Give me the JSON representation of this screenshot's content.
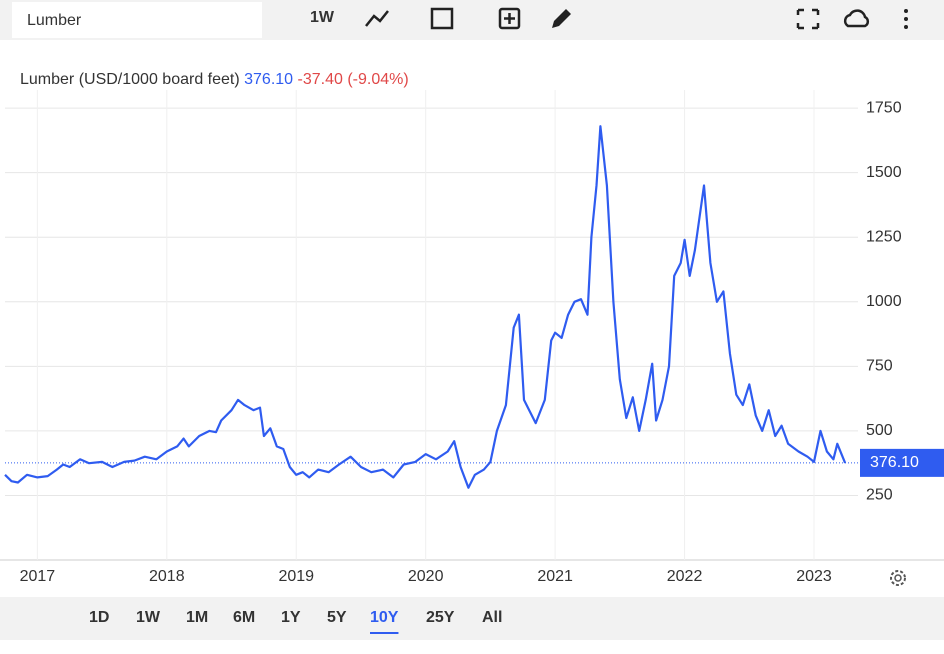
{
  "toolbar": {
    "search": "Lumber",
    "interval": "1W"
  },
  "ranges": [
    "1D",
    "1W",
    "1M",
    "6M",
    "1Y",
    "5Y",
    "10Y",
    "25Y",
    "All"
  ],
  "active_range": 6,
  "chart_data": {
    "type": "line",
    "title": "Lumber (USD/1000 board feet)",
    "last": {
      "value": 376.1,
      "label": "376.10"
    },
    "change": "-37.40 (-9.04%)",
    "x": [
      2016.75,
      2016.8,
      2016.85,
      2016.92,
      2017.0,
      2017.08,
      2017.15,
      2017.2,
      2017.25,
      2017.33,
      2017.4,
      2017.5,
      2017.58,
      2017.67,
      2017.75,
      2017.83,
      2017.92,
      2018.0,
      2018.08,
      2018.13,
      2018.17,
      2018.25,
      2018.33,
      2018.38,
      2018.42,
      2018.5,
      2018.55,
      2018.6,
      2018.67,
      2018.72,
      2018.75,
      2018.8,
      2018.85,
      2018.9,
      2018.95,
      2019.0,
      2019.05,
      2019.1,
      2019.17,
      2019.25,
      2019.33,
      2019.42,
      2019.5,
      2019.58,
      2019.67,
      2019.75,
      2019.83,
      2019.92,
      2020.0,
      2020.08,
      2020.17,
      2020.22,
      2020.27,
      2020.33,
      2020.38,
      2020.45,
      2020.5,
      2020.55,
      2020.62,
      2020.68,
      2020.72,
      2020.76,
      2020.8,
      2020.85,
      2020.92,
      2020.97,
      2021.0,
      2021.05,
      2021.1,
      2021.15,
      2021.2,
      2021.25,
      2021.28,
      2021.32,
      2021.35,
      2021.4,
      2021.45,
      2021.5,
      2021.55,
      2021.6,
      2021.65,
      2021.7,
      2021.75,
      2021.78,
      2021.83,
      2021.88,
      2021.92,
      2021.97,
      2022.0,
      2022.04,
      2022.08,
      2022.15,
      2022.2,
      2022.25,
      2022.3,
      2022.35,
      2022.4,
      2022.45,
      2022.5,
      2022.55,
      2022.6,
      2022.65,
      2022.7,
      2022.75,
      2022.8,
      2022.88,
      2022.95,
      2023.0,
      2023.05,
      2023.1,
      2023.15,
      2023.18,
      2023.24
    ],
    "series": [
      {
        "name": "Lumber",
        "color": "#2f5cf0",
        "values": [
          330,
          305,
          300,
          330,
          320,
          325,
          350,
          370,
          360,
          390,
          375,
          380,
          360,
          380,
          385,
          400,
          390,
          420,
          440,
          470,
          440,
          480,
          500,
          495,
          540,
          580,
          620,
          600,
          580,
          590,
          480,
          510,
          440,
          430,
          360,
          330,
          340,
          320,
          350,
          340,
          370,
          400,
          360,
          340,
          350,
          320,
          370,
          380,
          410,
          390,
          420,
          460,
          360,
          280,
          330,
          350,
          380,
          500,
          600,
          900,
          950,
          620,
          580,
          530,
          620,
          850,
          880,
          860,
          950,
          1000,
          1010,
          950,
          1250,
          1450,
          1680,
          1450,
          1000,
          700,
          550,
          630,
          500,
          620,
          760,
          540,
          620,
          750,
          1100,
          1150,
          1240,
          1100,
          1200,
          1450,
          1150,
          1000,
          1040,
          800,
          640,
          600,
          680,
          560,
          500,
          580,
          480,
          520,
          450,
          420,
          400,
          380,
          500,
          420,
          390,
          450,
          376.1
        ]
      }
    ],
    "xlim": [
      2016.75,
      2023.34
    ],
    "xticks": [
      2017,
      2018,
      2019,
      2020,
      2021,
      2022,
      2023
    ],
    "ylim": [
      0,
      1820
    ],
    "yticks": [
      250,
      500,
      750,
      1000,
      1250,
      1500,
      1750
    ],
    "grid": true
  }
}
